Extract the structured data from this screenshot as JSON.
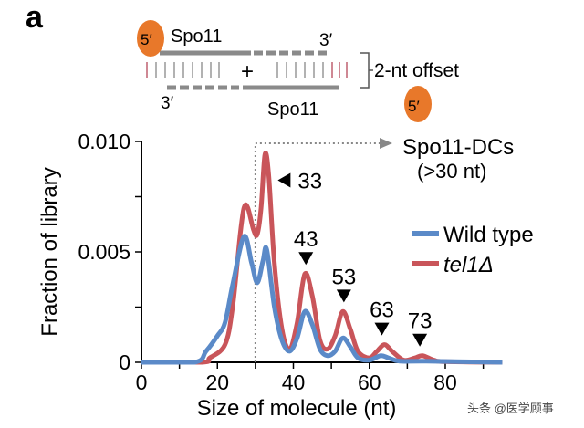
{
  "panel_label": "a",
  "diagram": {
    "top_5prime": "5′",
    "top_protein": "Spo11",
    "top_3prime": "3′",
    "plus": "+",
    "bottom_3prime": "3′",
    "bottom_protein": "Spo11",
    "bottom_5prime": "5′",
    "offset_label": "2-nt offset",
    "colors": {
      "protein": "#e8782a",
      "strand": "#8a8a8a",
      "tick": "#b5475a"
    }
  },
  "chart_data": {
    "type": "line",
    "xlabel": "Size of molecule (nt)",
    "ylabel": "Fraction of library",
    "xlim": [
      0,
      95
    ],
    "ylim": [
      0,
      0.01
    ],
    "xticks": [
      0,
      20,
      40,
      60,
      80
    ],
    "yticks": [
      0,
      0.005,
      0.01
    ],
    "ytick_labels": [
      "0",
      "0.005",
      "0.010"
    ],
    "grid": false,
    "legend_position": "right",
    "series": [
      {
        "name": "Wild type",
        "color": "#5b8ac8",
        "x": [
          0,
          14,
          17,
          20,
          22,
          24,
          27,
          29,
          30.5,
          32,
          33,
          35,
          37,
          39,
          41,
          43,
          45,
          47,
          49,
          51,
          53,
          55,
          57,
          60,
          63,
          65,
          68,
          75,
          95
        ],
        "y": [
          0,
          0,
          0.0005,
          0.0012,
          0.0018,
          0.0035,
          0.0057,
          0.0045,
          0.0036,
          0.0046,
          0.0051,
          0.0025,
          0.001,
          0.0005,
          0.0011,
          0.0023,
          0.0017,
          0.0006,
          0.0003,
          0.0005,
          0.0011,
          0.0007,
          0.0002,
          0.0001,
          0.0003,
          0.0002,
          5e-05,
          5e-05,
          0
        ]
      },
      {
        "name": "tel1Δ",
        "color": "#c9555a",
        "x": [
          0,
          16,
          18,
          22,
          24,
          26,
          27,
          28,
          29.5,
          30.5,
          31.5,
          32.5,
          33.5,
          35,
          37,
          39,
          41,
          43,
          45,
          47,
          49,
          51,
          53,
          55,
          57,
          60,
          62,
          64,
          66,
          69,
          72,
          74,
          77,
          80,
          95
        ],
        "y": [
          0,
          0,
          0.0002,
          0.0008,
          0.0025,
          0.0058,
          0.007,
          0.007,
          0.006,
          0.0058,
          0.007,
          0.0094,
          0.0085,
          0.0045,
          0.0015,
          0.0006,
          0.0018,
          0.004,
          0.003,
          0.001,
          0.0006,
          0.0012,
          0.0023,
          0.0015,
          0.0005,
          0.0002,
          0.0005,
          0.0008,
          0.0005,
          0.0001,
          0.0002,
          0.0003,
          0.0001,
          3e-05,
          0
        ]
      }
    ],
    "annotations": [
      {
        "label": "33",
        "x": 33,
        "y": 0.0094
      },
      {
        "label": "43",
        "x": 43,
        "y": 0.004
      },
      {
        "label": "53",
        "x": 53,
        "y": 0.0023
      },
      {
        "label": "63",
        "x": 63,
        "y": 0.0008
      },
      {
        "label": "73",
        "x": 73,
        "y": 0.0003
      }
    ],
    "threshold": {
      "x": 30,
      "label": "Spo11-DCs",
      "sublabel": "(>30 nt)"
    }
  },
  "watermark": "头条 @医学顾事"
}
